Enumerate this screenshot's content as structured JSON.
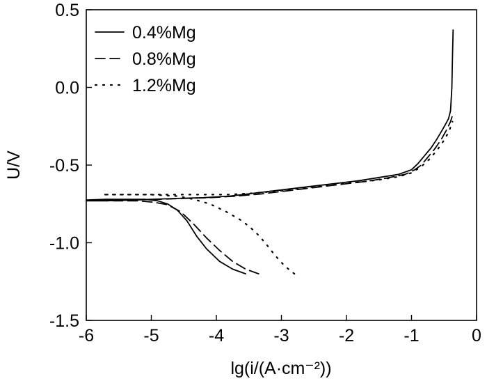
{
  "chart_data": {
    "type": "line",
    "xlabel": "lg(i/(A·cm⁻²))",
    "ylabel": "U/V",
    "xlim": [
      -6,
      0
    ],
    "ylim": [
      -1.5,
      0.5
    ],
    "x_ticks": [
      -6,
      -5,
      -4,
      -3,
      -2,
      -1,
      0
    ],
    "y_ticks": [
      -1.5,
      -1.0,
      -0.5,
      0.0,
      0.5
    ],
    "x_tick_labels": [
      "-6",
      "-5",
      "-4",
      "-3",
      "-2",
      "-1",
      "0"
    ],
    "y_tick_labels": [
      "-1.5",
      "-1.0",
      "-0.5",
      "0.0",
      "0.5"
    ],
    "grid": false,
    "legend_position": "top-left",
    "series": [
      {
        "name": "0.4%Mg",
        "style": "solid",
        "points": [
          [
            -3.55,
            -1.2
          ],
          [
            -3.75,
            -1.17
          ],
          [
            -3.95,
            -1.12
          ],
          [
            -4.15,
            -1.04
          ],
          [
            -4.3,
            -0.96
          ],
          [
            -4.45,
            -0.86
          ],
          [
            -4.6,
            -0.79
          ],
          [
            -4.75,
            -0.75
          ],
          [
            -4.9,
            -0.73
          ],
          [
            -5.1,
            -0.72
          ],
          [
            -5.4,
            -0.72
          ],
          [
            -5.7,
            -0.72
          ],
          [
            -6.0,
            -0.725
          ],
          [
            -5.7,
            -0.725
          ],
          [
            -5.3,
            -0.725
          ],
          [
            -5.0,
            -0.72
          ],
          [
            -4.6,
            -0.715
          ],
          [
            -4.2,
            -0.71
          ],
          [
            -3.8,
            -0.7
          ],
          [
            -3.4,
            -0.68
          ],
          [
            -3.0,
            -0.66
          ],
          [
            -2.6,
            -0.64
          ],
          [
            -2.2,
            -0.62
          ],
          [
            -1.8,
            -0.6
          ],
          [
            -1.5,
            -0.58
          ],
          [
            -1.2,
            -0.56
          ],
          [
            -1.0,
            -0.53
          ],
          [
            -0.9,
            -0.49
          ],
          [
            -0.8,
            -0.44
          ],
          [
            -0.7,
            -0.39
          ],
          [
            -0.62,
            -0.34
          ],
          [
            -0.55,
            -0.29
          ],
          [
            -0.48,
            -0.24
          ],
          [
            -0.43,
            -0.2
          ],
          [
            -0.4,
            -0.15
          ],
          [
            -0.38,
            0.0
          ],
          [
            -0.37,
            0.2
          ],
          [
            -0.36,
            0.37
          ]
        ]
      },
      {
        "name": "0.8%Mg",
        "style": "dashed",
        "points": [
          [
            -3.35,
            -1.2
          ],
          [
            -3.55,
            -1.17
          ],
          [
            -3.75,
            -1.12
          ],
          [
            -3.95,
            -1.05
          ],
          [
            -4.15,
            -0.97
          ],
          [
            -4.35,
            -0.88
          ],
          [
            -4.55,
            -0.8
          ],
          [
            -4.75,
            -0.755
          ],
          [
            -4.95,
            -0.74
          ],
          [
            -5.2,
            -0.73
          ],
          [
            -5.5,
            -0.73
          ],
          [
            -5.8,
            -0.73
          ],
          [
            -6.0,
            -0.73
          ],
          [
            -5.7,
            -0.73
          ],
          [
            -5.3,
            -0.725
          ],
          [
            -4.9,
            -0.72
          ],
          [
            -4.5,
            -0.715
          ],
          [
            -4.1,
            -0.71
          ],
          [
            -3.7,
            -0.7
          ],
          [
            -3.3,
            -0.685
          ],
          [
            -2.9,
            -0.665
          ],
          [
            -2.5,
            -0.645
          ],
          [
            -2.1,
            -0.625
          ],
          [
            -1.7,
            -0.605
          ],
          [
            -1.4,
            -0.585
          ],
          [
            -1.1,
            -0.56
          ],
          [
            -0.95,
            -0.53
          ],
          [
            -0.85,
            -0.5
          ],
          [
            -0.75,
            -0.45
          ],
          [
            -0.65,
            -0.4
          ],
          [
            -0.55,
            -0.34
          ],
          [
            -0.47,
            -0.28
          ],
          [
            -0.4,
            -0.22
          ],
          [
            -0.37,
            -0.18
          ]
        ]
      },
      {
        "name": "1.2%Mg",
        "style": "dotted",
        "points": [
          [
            -2.8,
            -1.2
          ],
          [
            -2.95,
            -1.15
          ],
          [
            -3.1,
            -1.08
          ],
          [
            -3.25,
            -1.0
          ],
          [
            -3.4,
            -0.93
          ],
          [
            -3.6,
            -0.86
          ],
          [
            -3.85,
            -0.8
          ],
          [
            -4.1,
            -0.75
          ],
          [
            -4.35,
            -0.72
          ],
          [
            -4.6,
            -0.7
          ],
          [
            -5.0,
            -0.69
          ],
          [
            -5.4,
            -0.69
          ],
          [
            -5.75,
            -0.69
          ],
          [
            -5.4,
            -0.69
          ],
          [
            -5.0,
            -0.69
          ],
          [
            -4.6,
            -0.69
          ],
          [
            -4.2,
            -0.69
          ],
          [
            -3.8,
            -0.69
          ],
          [
            -3.4,
            -0.68
          ],
          [
            -3.0,
            -0.665
          ],
          [
            -2.6,
            -0.645
          ],
          [
            -2.2,
            -0.625
          ],
          [
            -1.8,
            -0.61
          ],
          [
            -1.5,
            -0.595
          ],
          [
            -1.2,
            -0.575
          ],
          [
            -1.0,
            -0.55
          ],
          [
            -0.85,
            -0.51
          ],
          [
            -0.72,
            -0.46
          ],
          [
            -0.6,
            -0.4
          ],
          [
            -0.5,
            -0.34
          ],
          [
            -0.42,
            -0.28
          ],
          [
            -0.37,
            -0.22
          ]
        ]
      }
    ]
  }
}
